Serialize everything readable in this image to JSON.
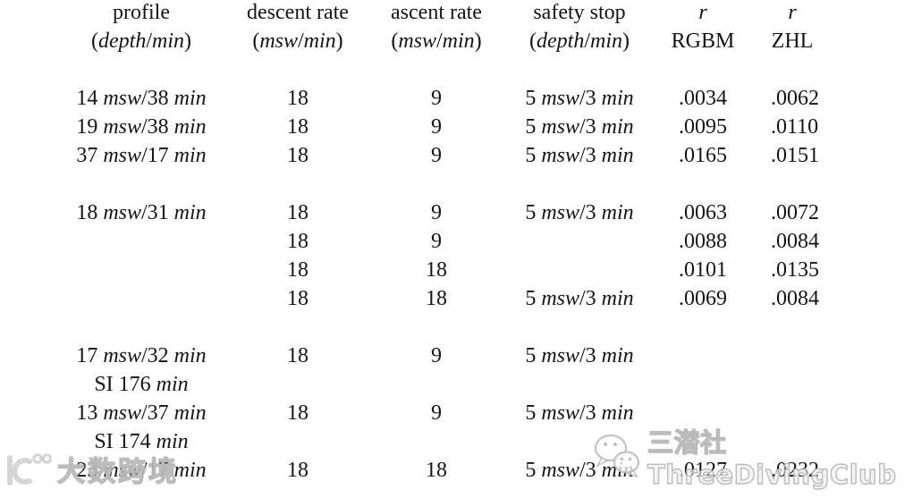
{
  "table": {
    "columns": [
      {
        "id": "profile",
        "header_line1": "profile",
        "header_line2": "(depth/min)"
      },
      {
        "id": "descent-rate",
        "header_line1": "descent rate",
        "header_line2": "(msw/min)"
      },
      {
        "id": "ascent-rate",
        "header_line1": "ascent rate",
        "header_line2": "(msw/min)"
      },
      {
        "id": "safety-stop",
        "header_line1": "safety stop",
        "header_line2": "(depth/min)"
      },
      {
        "id": "r-rgbm",
        "header_line1": "r",
        "header_line2": "RGBM"
      },
      {
        "id": "r-zhl",
        "header_line1": "r",
        "header_line2": "ZHL"
      }
    ],
    "rows": [
      [
        "",
        "",
        "",
        "",
        "",
        ""
      ],
      [
        "14 msw/38 min",
        "18",
        "9",
        "5 msw/3 min",
        ".0034",
        ".0062"
      ],
      [
        "19 msw/38 min",
        "18",
        "9",
        "5 msw/3 min",
        ".0095",
        ".0110"
      ],
      [
        "37 msw/17 min",
        "18",
        "9",
        "5 msw/3 min",
        ".0165",
        ".0151"
      ],
      [
        "",
        "",
        "",
        "",
        "",
        ""
      ],
      [
        "18 msw/31 min",
        "18",
        "9",
        "5 msw/3 min",
        ".0063",
        ".0072"
      ],
      [
        "",
        "18",
        "9",
        "",
        ".0088",
        ".0084"
      ],
      [
        "",
        "18",
        "18",
        "",
        ".0101",
        ".0135"
      ],
      [
        "",
        "18",
        "18",
        "5 msw/3 min",
        ".0069",
        ".0084"
      ],
      [
        "",
        "",
        "",
        "",
        "",
        ""
      ],
      [
        "17 msw/32 min",
        "18",
        "9",
        "5 msw/3 min",
        "",
        ""
      ],
      [
        "SI 176 min",
        "",
        "",
        "",
        "",
        ""
      ],
      [
        "13 msw/37 min",
        "18",
        "9",
        "5 msw/3 min",
        "",
        ""
      ],
      [
        "SI 174 min",
        "",
        "",
        "",
        "",
        ""
      ],
      [
        "23 msw/17 min",
        "18",
        "18",
        "5 msw/3 min",
        ".0127",
        ".0232"
      ]
    ]
  },
  "colors": {
    "text": "#141414",
    "background": "#ffffff",
    "watermark_gray": "#b0b0b0"
  },
  "watermarks": {
    "bottom_left": {
      "icon": "dashu-logo-icon",
      "text": "大数跨境"
    },
    "bottom_right": {
      "icon": "wechat-bubbles-icon",
      "text": "三潜社ThreeDivingClub"
    }
  }
}
